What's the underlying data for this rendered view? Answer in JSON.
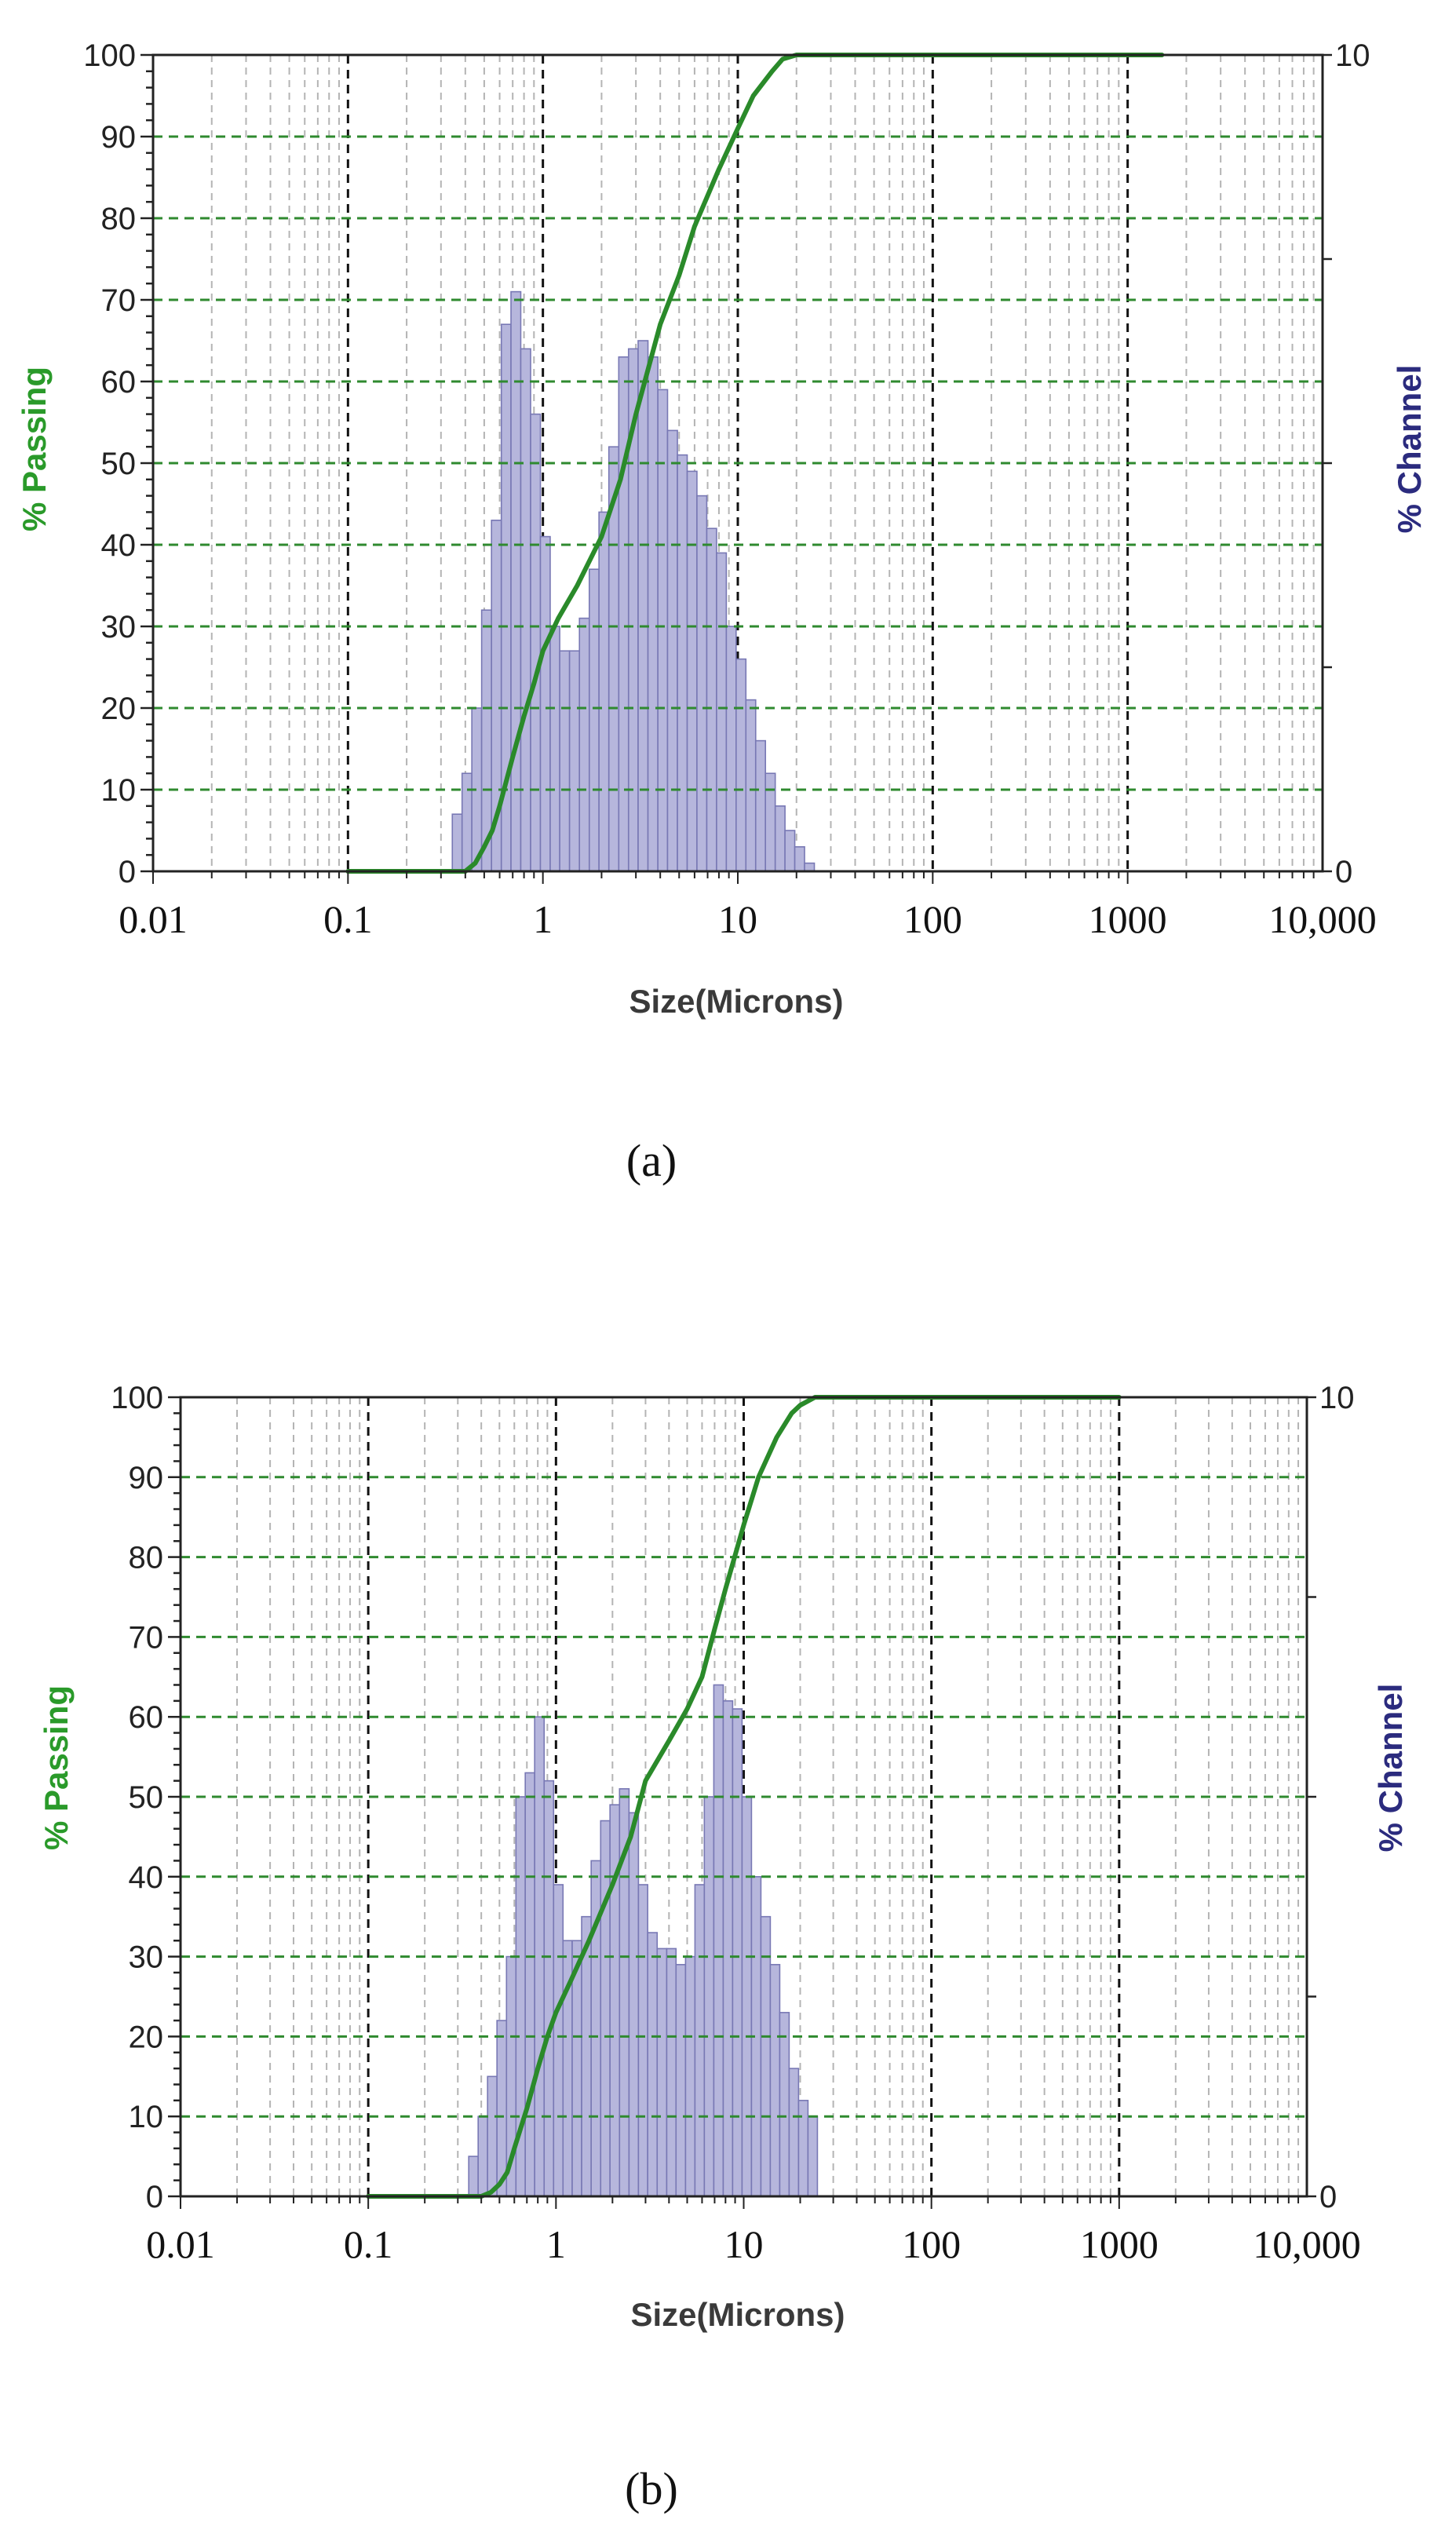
{
  "chart_data": [
    {
      "type": "bar",
      "panel_label": "(a)",
      "xlabel": "Size(Microns)",
      "ylabel_left": "% Passing",
      "ylabel_right": "% Channel",
      "x_scale": "log",
      "xlim": [
        0.01,
        10000
      ],
      "ylim_left": [
        0,
        100
      ],
      "ylim_right": [
        0,
        10
      ],
      "x_tick_labels": [
        "0.01",
        "0.1",
        "1",
        "10",
        "100",
        "1000",
        "10,000"
      ],
      "x_tick_values": [
        0.01,
        0.1,
        1,
        10,
        100,
        1000,
        10000
      ],
      "y_left_ticks": [
        "0",
        "10",
        "20",
        "30",
        "40",
        "50",
        "60",
        "70",
        "80",
        "90",
        "100"
      ],
      "y_right_ticks": [
        "0",
        "10"
      ],
      "grid": true,
      "colors": {
        "bars": "#b6b6dc",
        "bar_edge": "#7878b4",
        "cumulative": "#2a8a2a",
        "hgrid": "#2f8a2f",
        "left_axis_title": "#2a9a2a",
        "right_axis_title": "#2b2b7e"
      },
      "series": [
        {
          "kind": "histogram",
          "axis": "right",
          "bins": [
            {
              "lo": 0.343,
              "hi": 0.385,
              "value": 0.7
            },
            {
              "lo": 0.385,
              "hi": 0.432,
              "value": 1.2
            },
            {
              "lo": 0.432,
              "hi": 0.485,
              "value": 2.0
            },
            {
              "lo": 0.485,
              "hi": 0.545,
              "value": 3.2
            },
            {
              "lo": 0.545,
              "hi": 0.612,
              "value": 4.3
            },
            {
              "lo": 0.612,
              "hi": 0.686,
              "value": 6.7
            },
            {
              "lo": 0.686,
              "hi": 0.77,
              "value": 7.1
            },
            {
              "lo": 0.77,
              "hi": 0.865,
              "value": 6.4
            },
            {
              "lo": 0.865,
              "hi": 0.971,
              "value": 5.6
            },
            {
              "lo": 0.971,
              "hi": 1.09,
              "value": 4.1
            },
            {
              "lo": 1.09,
              "hi": 1.22,
              "value": 3.0
            },
            {
              "lo": 1.22,
              "hi": 1.37,
              "value": 2.7
            },
            {
              "lo": 1.37,
              "hi": 1.54,
              "value": 2.7
            },
            {
              "lo": 1.54,
              "hi": 1.73,
              "value": 3.1
            },
            {
              "lo": 1.73,
              "hi": 1.94,
              "value": 3.7
            },
            {
              "lo": 1.94,
              "hi": 2.18,
              "value": 4.4
            },
            {
              "lo": 2.18,
              "hi": 2.45,
              "value": 5.2
            },
            {
              "lo": 2.45,
              "hi": 2.75,
              "value": 6.3
            },
            {
              "lo": 2.75,
              "hi": 3.08,
              "value": 6.4
            },
            {
              "lo": 3.08,
              "hi": 3.46,
              "value": 6.5
            },
            {
              "lo": 3.46,
              "hi": 3.89,
              "value": 6.3
            },
            {
              "lo": 3.89,
              "hi": 4.36,
              "value": 5.9
            },
            {
              "lo": 4.36,
              "hi": 4.9,
              "value": 5.4
            },
            {
              "lo": 4.9,
              "hi": 5.5,
              "value": 5.1
            },
            {
              "lo": 5.5,
              "hi": 6.17,
              "value": 4.9
            },
            {
              "lo": 6.17,
              "hi": 6.93,
              "value": 4.6
            },
            {
              "lo": 6.93,
              "hi": 7.78,
              "value": 4.2
            },
            {
              "lo": 7.78,
              "hi": 8.73,
              "value": 3.9
            },
            {
              "lo": 8.73,
              "hi": 9.8,
              "value": 3.0
            },
            {
              "lo": 9.8,
              "hi": 11.0,
              "value": 2.6
            },
            {
              "lo": 11.0,
              "hi": 12.35,
              "value": 2.1
            },
            {
              "lo": 12.35,
              "hi": 13.86,
              "value": 1.6
            },
            {
              "lo": 13.86,
              "hi": 15.56,
              "value": 1.2
            },
            {
              "lo": 15.56,
              "hi": 17.46,
              "value": 0.8
            },
            {
              "lo": 17.46,
              "hi": 19.6,
              "value": 0.5
            },
            {
              "lo": 19.6,
              "hi": 22.0,
              "value": 0.3
            },
            {
              "lo": 22.0,
              "hi": 24.7,
              "value": 0.1
            }
          ]
        },
        {
          "kind": "line",
          "axis": "left",
          "x": [
            0.1,
            0.3,
            0.4,
            0.45,
            0.5,
            0.55,
            0.6,
            0.7,
            0.8,
            0.9,
            1.0,
            1.2,
            1.5,
            2.0,
            2.5,
            3.0,
            4.0,
            5.0,
            6.0,
            8.0,
            10.0,
            12.0,
            15.0,
            17.0,
            20.0,
            1500.0
          ],
          "y": [
            0,
            0,
            0,
            1,
            3,
            5,
            8,
            14,
            19,
            23,
            27,
            31,
            35,
            41,
            48,
            56,
            67,
            73,
            79,
            86,
            91,
            95,
            98,
            99.5,
            100,
            100
          ]
        }
      ]
    },
    {
      "type": "bar",
      "panel_label": "(b)",
      "xlabel": "Size(Microns)",
      "ylabel_left": "% Passing",
      "ylabel_right": "% Channel",
      "x_scale": "log",
      "xlim": [
        0.01,
        10000
      ],
      "ylim_left": [
        0,
        100
      ],
      "ylim_right": [
        0,
        10
      ],
      "x_tick_labels": [
        "0.01",
        "0.1",
        "1",
        "10",
        "100",
        "1000",
        "10,000"
      ],
      "x_tick_values": [
        0.01,
        0.1,
        1,
        10,
        100,
        1000,
        10000
      ],
      "y_left_ticks": [
        "0",
        "10",
        "20",
        "30",
        "40",
        "50",
        "60",
        "70",
        "80",
        "90",
        "100"
      ],
      "y_right_ticks": [
        "0",
        "10"
      ],
      "grid": true,
      "colors": {
        "bars": "#b6b6dc",
        "bar_edge": "#7878b4",
        "cumulative": "#2a8a2a",
        "hgrid": "#2f8a2f",
        "left_axis_title": "#2a9a2a",
        "right_axis_title": "#2b2b7e"
      },
      "series": [
        {
          "kind": "histogram",
          "axis": "right",
          "bins": [
            {
              "lo": 0.343,
              "hi": 0.385,
              "value": 0.5
            },
            {
              "lo": 0.385,
              "hi": 0.432,
              "value": 1.0
            },
            {
              "lo": 0.432,
              "hi": 0.485,
              "value": 1.5
            },
            {
              "lo": 0.485,
              "hi": 0.545,
              "value": 2.2
            },
            {
              "lo": 0.545,
              "hi": 0.612,
              "value": 3.0
            },
            {
              "lo": 0.612,
              "hi": 0.686,
              "value": 5.0
            },
            {
              "lo": 0.686,
              "hi": 0.77,
              "value": 5.3
            },
            {
              "lo": 0.77,
              "hi": 0.865,
              "value": 6.0
            },
            {
              "lo": 0.865,
              "hi": 0.971,
              "value": 5.2
            },
            {
              "lo": 0.971,
              "hi": 1.09,
              "value": 3.9
            },
            {
              "lo": 1.09,
              "hi": 1.22,
              "value": 3.2
            },
            {
              "lo": 1.22,
              "hi": 1.37,
              "value": 3.2
            },
            {
              "lo": 1.37,
              "hi": 1.54,
              "value": 3.5
            },
            {
              "lo": 1.54,
              "hi": 1.73,
              "value": 4.2
            },
            {
              "lo": 1.73,
              "hi": 1.94,
              "value": 4.7
            },
            {
              "lo": 1.94,
              "hi": 2.18,
              "value": 4.9
            },
            {
              "lo": 2.18,
              "hi": 2.45,
              "value": 5.1
            },
            {
              "lo": 2.45,
              "hi": 2.75,
              "value": 4.8
            },
            {
              "lo": 2.75,
              "hi": 3.08,
              "value": 3.9
            },
            {
              "lo": 3.08,
              "hi": 3.46,
              "value": 3.3
            },
            {
              "lo": 3.46,
              "hi": 3.89,
              "value": 3.1
            },
            {
              "lo": 3.89,
              "hi": 4.36,
              "value": 3.1
            },
            {
              "lo": 4.36,
              "hi": 4.9,
              "value": 2.9
            },
            {
              "lo": 4.9,
              "hi": 5.5,
              "value": 3.0
            },
            {
              "lo": 5.5,
              "hi": 6.17,
              "value": 3.9
            },
            {
              "lo": 6.17,
              "hi": 6.93,
              "value": 5.0
            },
            {
              "lo": 6.93,
              "hi": 7.78,
              "value": 6.4
            },
            {
              "lo": 7.78,
              "hi": 8.73,
              "value": 6.2
            },
            {
              "lo": 8.73,
              "hi": 9.8,
              "value": 6.1
            },
            {
              "lo": 9.8,
              "hi": 11.0,
              "value": 5.0
            },
            {
              "lo": 11.0,
              "hi": 12.35,
              "value": 4.0
            },
            {
              "lo": 12.35,
              "hi": 13.86,
              "value": 3.5
            },
            {
              "lo": 13.86,
              "hi": 15.56,
              "value": 2.9
            },
            {
              "lo": 15.56,
              "hi": 17.46,
              "value": 2.3
            },
            {
              "lo": 17.46,
              "hi": 19.6,
              "value": 1.6
            },
            {
              "lo": 19.6,
              "hi": 22.0,
              "value": 1.2
            },
            {
              "lo": 22.0,
              "hi": 24.7,
              "value": 1.0
            }
          ]
        },
        {
          "kind": "line",
          "axis": "left",
          "x": [
            0.1,
            0.4,
            0.45,
            0.5,
            0.55,
            0.6,
            0.7,
            0.8,
            0.9,
            1.0,
            1.2,
            1.5,
            2.0,
            2.5,
            3.0,
            4.0,
            5.0,
            6.0,
            7.0,
            8.0,
            10.0,
            12.0,
            15.0,
            18.0,
            20.0,
            24.0,
            1000.0
          ],
          "y": [
            0,
            0,
            0.5,
            1.5,
            3,
            6,
            11,
            16,
            20,
            23,
            27,
            32,
            39,
            45,
            52,
            57,
            61,
            65,
            71,
            76,
            84,
            90,
            95,
            98,
            99,
            100,
            100
          ]
        }
      ]
    }
  ]
}
